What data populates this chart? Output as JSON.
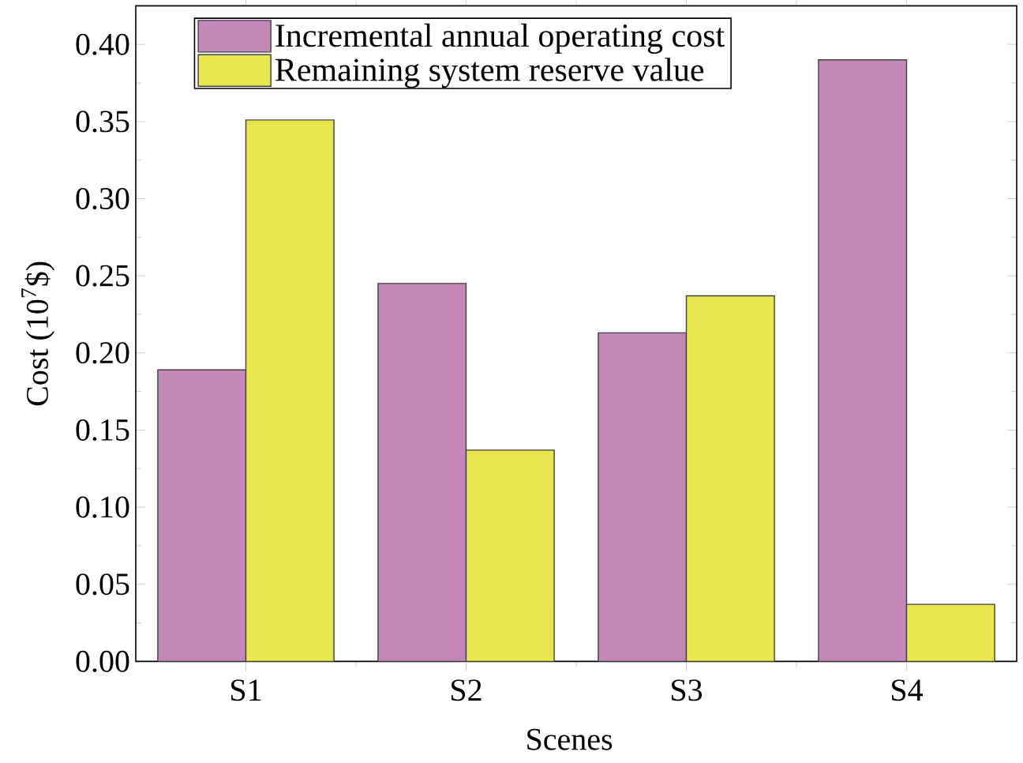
{
  "chart_data": {
    "type": "bar",
    "xlabel": "Scenes",
    "ylabel": "Cost (10$^{7}$$)",
    "categories": [
      "S1",
      "S2",
      "S3",
      "S4"
    ],
    "series": [
      {
        "name": "Incremental annual operating cost",
        "color": "#c387b8",
        "values": [
          0.189,
          0.245,
          0.213,
          0.39
        ]
      },
      {
        "name": "Remaining system reserve value",
        "color": "#e9e64f",
        "values": [
          0.351,
          0.137,
          0.237,
          0.037
        ]
      }
    ],
    "ylim": [
      0,
      0.425
    ],
    "yticks": [
      {
        "value": 0,
        "label": "0.00"
      },
      {
        "value": 0.05,
        "label": "0.05"
      },
      {
        "value": 0.1,
        "label": "0.10"
      },
      {
        "value": 0.15,
        "label": "0.15"
      },
      {
        "value": 0.2,
        "label": "0.20"
      },
      {
        "value": 0.25,
        "label": "0.25"
      },
      {
        "value": 0.3,
        "label": "0.30"
      },
      {
        "value": 0.35,
        "label": "0.35"
      },
      {
        "value": 0.4,
        "label": "0.40"
      }
    ],
    "legend": "top left"
  }
}
